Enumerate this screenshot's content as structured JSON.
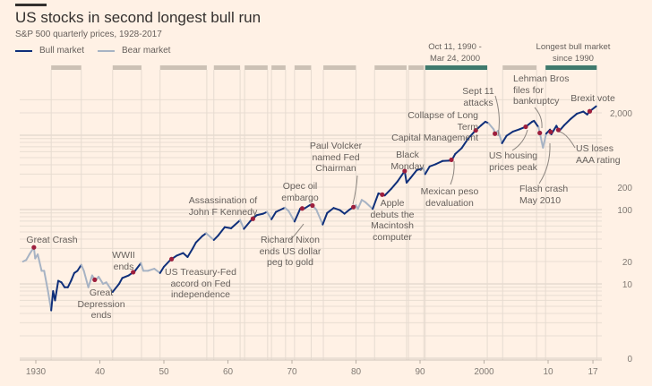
{
  "chart_data": {
    "type": "line",
    "title": "US stocks in second longest bull run",
    "subtitle": "S&P 500 quarterly prices, 1928-2017",
    "legend": [
      {
        "name": "Bull market",
        "color": "#0f2f7a"
      },
      {
        "name": "Bear market",
        "color": "#a7b3c4"
      }
    ],
    "legend_placement": "top-left",
    "y_scale": "log",
    "grid": true,
    "ylim": [
      1,
      3000
    ],
    "xlim": [
      1928,
      2018
    ],
    "x_ticks": [
      {
        "v": 1930,
        "label": "1930"
      },
      {
        "v": 1940,
        "label": "40"
      },
      {
        "v": 1950,
        "label": "50"
      },
      {
        "v": 1960,
        "label": "60"
      },
      {
        "v": 1970,
        "label": "70"
      },
      {
        "v": 1980,
        "label": "80"
      },
      {
        "v": 1990,
        "label": "90"
      },
      {
        "v": 2000,
        "label": "2000"
      },
      {
        "v": 2010,
        "label": "10"
      },
      {
        "v": 2017,
        "label": "17"
      }
    ],
    "y_ticks": [
      {
        "v": 1,
        "label": "0"
      },
      {
        "v": 10,
        "label": "10"
      },
      {
        "v": 20,
        "label": "20"
      },
      {
        "v": 100,
        "label": "100"
      },
      {
        "v": 200,
        "label": "200"
      },
      {
        "v": 2000,
        "label": "2,000"
      }
    ],
    "bull_periods": [
      [
        1932.4,
        1937.1
      ],
      [
        1942.0,
        1946.5
      ],
      [
        1949.4,
        1956.7
      ],
      [
        1957.8,
        1961.9
      ],
      [
        1962.6,
        1966.2
      ],
      [
        1966.8,
        1969.0
      ],
      [
        1970.4,
        1973.0
      ],
      [
        1974.9,
        1980.0
      ],
      [
        1982.9,
        1987.9
      ],
      [
        1988.2,
        1990.6
      ],
      [
        1990.8,
        2000.5
      ],
      [
        2002.9,
        2008.2
      ],
      [
        2009.6,
        2017.6
      ]
    ],
    "highlighted_periods": [
      {
        "range": [
          1990.8,
          2000.5
        ],
        "label": "Oct 11, 1990 -\nMar 24, 2000",
        "color": "#3f7a6d"
      },
      {
        "range": [
          2009.6,
          2017.6
        ],
        "label": "Longest bull market\nsince 1990",
        "color": "#3f7a6d"
      }
    ],
    "points": [
      [
        1928.0,
        20
      ],
      [
        1928.5,
        21
      ],
      [
        1929.0,
        25
      ],
      [
        1929.7,
        31
      ],
      [
        1929.9,
        22
      ],
      [
        1930.3,
        25
      ],
      [
        1930.9,
        15
      ],
      [
        1931.3,
        15
      ],
      [
        1931.9,
        8
      ],
      [
        1932.4,
        4.4
      ],
      [
        1932.7,
        8
      ],
      [
        1933.0,
        6
      ],
      [
        1933.5,
        11
      ],
      [
        1934.0,
        10.5
      ],
      [
        1934.5,
        9
      ],
      [
        1935.0,
        9
      ],
      [
        1935.5,
        11
      ],
      [
        1936.0,
        14
      ],
      [
        1936.5,
        15
      ],
      [
        1937.1,
        18
      ],
      [
        1937.5,
        15
      ],
      [
        1938.2,
        9
      ],
      [
        1938.8,
        13
      ],
      [
        1939.3,
        11
      ],
      [
        1939.8,
        12.5
      ],
      [
        1940.5,
        10
      ],
      [
        1941.0,
        10.5
      ],
      [
        1942.0,
        7.8
      ],
      [
        1943.0,
        10
      ],
      [
        1943.5,
        12
      ],
      [
        1944.5,
        13
      ],
      [
        1945.5,
        15
      ],
      [
        1946.4,
        19
      ],
      [
        1946.8,
        15
      ],
      [
        1947.5,
        15
      ],
      [
        1948.5,
        16
      ],
      [
        1949.4,
        14
      ],
      [
        1950.0,
        17
      ],
      [
        1951.0,
        21
      ],
      [
        1952.0,
        24
      ],
      [
        1953.0,
        26
      ],
      [
        1953.7,
        23
      ],
      [
        1954.5,
        30
      ],
      [
        1955.0,
        36
      ],
      [
        1956.0,
        44
      ],
      [
        1956.6,
        48
      ],
      [
        1957.8,
        39
      ],
      [
        1958.5,
        45
      ],
      [
        1959.5,
        58
      ],
      [
        1960.5,
        56
      ],
      [
        1961.9,
        72
      ],
      [
        1962.5,
        55
      ],
      [
        1963.5,
        70
      ],
      [
        1964.5,
        84
      ],
      [
        1965.5,
        88
      ],
      [
        1966.1,
        93
      ],
      [
        1966.8,
        74
      ],
      [
        1967.5,
        93
      ],
      [
        1968.9,
        106
      ],
      [
        1969.5,
        95
      ],
      [
        1970.4,
        69
      ],
      [
        1971.3,
        103
      ],
      [
        1972.0,
        104
      ],
      [
        1973.0,
        118
      ],
      [
        1973.8,
        100
      ],
      [
        1974.8,
        63
      ],
      [
        1975.5,
        90
      ],
      [
        1976.5,
        105
      ],
      [
        1977.5,
        98
      ],
      [
        1978.2,
        88
      ],
      [
        1979.0,
        100
      ],
      [
        1980.0,
        114
      ],
      [
        1980.3,
        102
      ],
      [
        1980.9,
        135
      ],
      [
        1981.5,
        125
      ],
      [
        1982.6,
        102
      ],
      [
        1983.5,
        165
      ],
      [
        1984.5,
        155
      ],
      [
        1985.5,
        190
      ],
      [
        1986.5,
        240
      ],
      [
        1987.6,
        330
      ],
      [
        1987.9,
        230
      ],
      [
        1988.5,
        265
      ],
      [
        1989.5,
        340
      ],
      [
        1990.5,
        360
      ],
      [
        1990.8,
        300
      ],
      [
        1991.5,
        380
      ],
      [
        1992.5,
        410
      ],
      [
        1993.5,
        450
      ],
      [
        1994.5,
        455
      ],
      [
        1995.0,
        470
      ],
      [
        1995.5,
        560
      ],
      [
        1996.5,
        670
      ],
      [
        1997.5,
        900
      ],
      [
        1998.5,
        1120
      ],
      [
        1999.5,
        1350
      ],
      [
        2000.2,
        1520
      ],
      [
        2000.7,
        1450
      ],
      [
        2001.5,
        1200
      ],
      [
        2001.7,
        1050
      ],
      [
        2002.2,
        1150
      ],
      [
        2002.8,
        780
      ],
      [
        2003.5,
        980
      ],
      [
        2004.5,
        1120
      ],
      [
        2005.5,
        1200
      ],
      [
        2006.5,
        1300
      ],
      [
        2007.5,
        1520
      ],
      [
        2007.8,
        1560
      ],
      [
        2008.5,
        1280
      ],
      [
        2008.9,
        900
      ],
      [
        2009.2,
        680
      ],
      [
        2009.7,
        1050
      ],
      [
        2010.3,
        1190
      ],
      [
        2010.5,
        1030
      ],
      [
        2011.3,
        1340
      ],
      [
        2011.7,
        1130
      ],
      [
        2012.5,
        1360
      ],
      [
        2013.5,
        1650
      ],
      [
        2014.5,
        1950
      ],
      [
        2015.5,
        2080
      ],
      [
        2016.1,
        1900
      ],
      [
        2016.5,
        2100
      ],
      [
        2017.5,
        2450
      ]
    ],
    "events": [
      {
        "year": 1929.7,
        "label": "Great Crash"
      },
      {
        "year": 1939.2,
        "label": "Great\nDepression\nends"
      },
      {
        "year": 1945.2,
        "label": "WWII\nends"
      },
      {
        "year": 1951.2,
        "label": "US Treasury-Fed\naccord on Fed\nindependence"
      },
      {
        "year": 1963.9,
        "label": "Assassination of\nJohn F Kennedy"
      },
      {
        "year": 1971.6,
        "label": "Richard Nixon\nends US dollar\npeg to gold"
      },
      {
        "year": 1973.2,
        "label": "Opec oil\nembargo"
      },
      {
        "year": 1979.6,
        "label": "Paul Volcker\nnamed Fed\nChairman"
      },
      {
        "year": 1984.1,
        "label": "Apple\ndebuts the\nMacintosh\ncomputer"
      },
      {
        "year": 1987.6,
        "label": "Black\nMonday"
      },
      {
        "year": 1994.9,
        "label": "Mexican peso\ndevaluation"
      },
      {
        "year": 1998.7,
        "label": "Collapse of Long Term\nCapital Management"
      },
      {
        "year": 2001.7,
        "label": "Sept 11 attacks"
      },
      {
        "year": 2006.5,
        "label": "US housing\nprices peak"
      },
      {
        "year": 2008.7,
        "label": "Lehman Bros\nfiles for\nbankruptcy"
      },
      {
        "year": 2010.4,
        "label": "Flash crash\nMay 2010"
      },
      {
        "year": 2011.6,
        "label": "US loses\nAAA rating"
      },
      {
        "year": 2016.5,
        "label": "Brexit vote"
      }
    ],
    "colors": {
      "bull": "#0f2f7a",
      "bear": "#a7b3c4",
      "event_dot": "#9e1f3d",
      "period_bar": "#ccc1b5",
      "highlight_bar": "#3f7a6d"
    }
  }
}
